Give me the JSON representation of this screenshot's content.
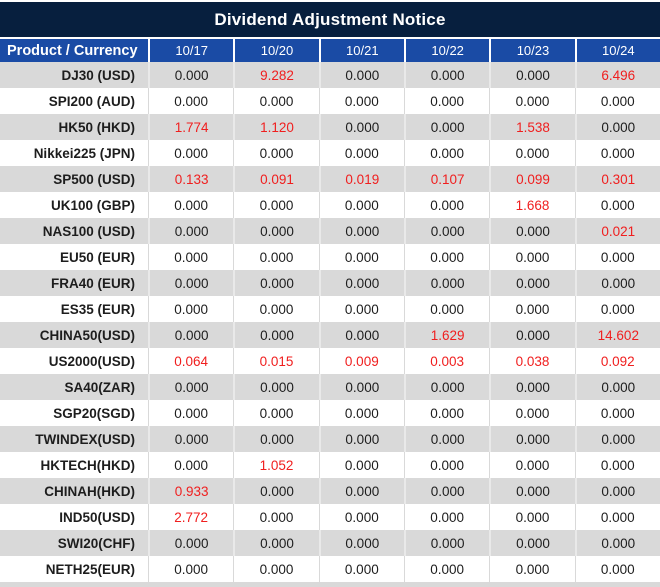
{
  "title": "Dividend Adjustment Notice",
  "colors": {
    "title_bg": "#071f3e",
    "header_bg": "#1a4ba5",
    "stripe_gray": "#d9d9d9",
    "row_white": "#ffffff",
    "value_red": "#f01e1e",
    "text_dark": "#1d1d1d",
    "header_text": "#ffffff"
  },
  "chart_data": {
    "type": "table",
    "title": "Dividend Adjustment Notice",
    "columns": [
      "Product / Currency",
      "10/17",
      "10/20",
      "10/21",
      "10/22",
      "10/23",
      "10/24"
    ],
    "rows": [
      [
        "DJ30 (USD)",
        "0.000",
        "9.282",
        "0.000",
        "0.000",
        "0.000",
        "6.496"
      ],
      [
        "SPI200 (AUD)",
        "0.000",
        "0.000",
        "0.000",
        "0.000",
        "0.000",
        "0.000"
      ],
      [
        "HK50 (HKD)",
        "1.774",
        "1.120",
        "0.000",
        "0.000",
        "1.538",
        "0.000"
      ],
      [
        "Nikkei225 (JPN)",
        "0.000",
        "0.000",
        "0.000",
        "0.000",
        "0.000",
        "0.000"
      ],
      [
        "SP500 (USD)",
        "0.133",
        "0.091",
        "0.019",
        "0.107",
        "0.099",
        "0.301"
      ],
      [
        "UK100 (GBP)",
        "0.000",
        "0.000",
        "0.000",
        "0.000",
        "1.668",
        "0.000"
      ],
      [
        "NAS100 (USD)",
        "0.000",
        "0.000",
        "0.000",
        "0.000",
        "0.000",
        "0.021"
      ],
      [
        "EU50 (EUR)",
        "0.000",
        "0.000",
        "0.000",
        "0.000",
        "0.000",
        "0.000"
      ],
      [
        "FRA40 (EUR)",
        "0.000",
        "0.000",
        "0.000",
        "0.000",
        "0.000",
        "0.000"
      ],
      [
        "ES35 (EUR)",
        "0.000",
        "0.000",
        "0.000",
        "0.000",
        "0.000",
        "0.000"
      ],
      [
        "CHINA50(USD)",
        "0.000",
        "0.000",
        "0.000",
        "1.629",
        "0.000",
        "14.602"
      ],
      [
        "US2000(USD)",
        "0.064",
        "0.015",
        "0.009",
        "0.003",
        "0.038",
        "0.092"
      ],
      [
        "SA40(ZAR)",
        "0.000",
        "0.000",
        "0.000",
        "0.000",
        "0.000",
        "0.000"
      ],
      [
        "SGP20(SGD)",
        "0.000",
        "0.000",
        "0.000",
        "0.000",
        "0.000",
        "0.000"
      ],
      [
        "TWINDEX(USD)",
        "0.000",
        "0.000",
        "0.000",
        "0.000",
        "0.000",
        "0.000"
      ],
      [
        "HKTECH(HKD)",
        "0.000",
        "1.052",
        "0.000",
        "0.000",
        "0.000",
        "0.000"
      ],
      [
        "CHINAH(HKD)",
        "0.933",
        "0.000",
        "0.000",
        "0.000",
        "0.000",
        "0.000"
      ],
      [
        "IND50(USD)",
        "2.772",
        "0.000",
        "0.000",
        "0.000",
        "0.000",
        "0.000"
      ],
      [
        "SWI20(CHF)",
        "0.000",
        "0.000",
        "0.000",
        "0.000",
        "0.000",
        "0.000"
      ],
      [
        "NETH25(EUR)",
        "0.000",
        "0.000",
        "0.000",
        "0.000",
        "0.000",
        "0.000"
      ]
    ],
    "layout_hints": {
      "striping": "alternating gray/white rows starting gray",
      "red_values": "non-zero adjustment values are rendered in red",
      "first_column_align": "right",
      "value_align": "center"
    }
  }
}
